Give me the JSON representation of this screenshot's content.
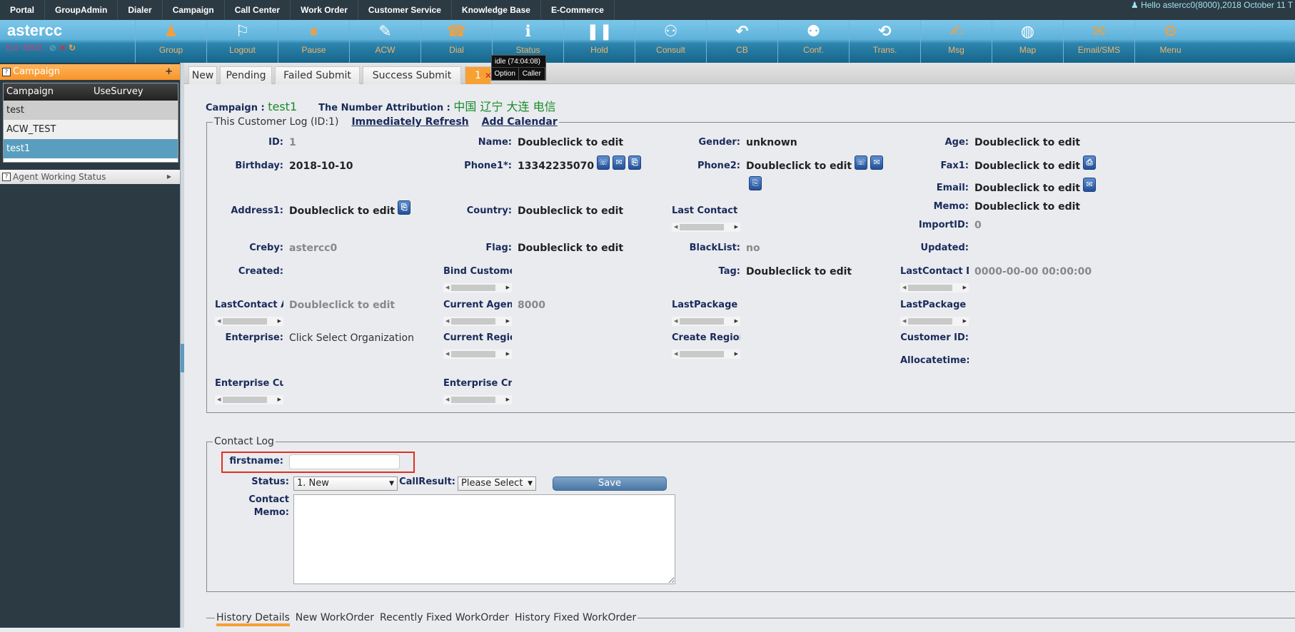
{
  "topnav": {
    "items": [
      "Portal",
      "GroupAdmin",
      "Dialer",
      "Campaign",
      "Call Center",
      "Work Order",
      "Customer Service",
      "Knowledge Base",
      "E-Commerce"
    ],
    "hello": "Hello astercc0(8000),2018 October 11 T"
  },
  "brand": {
    "name": "astercc",
    "ext": "Ext: 8000 :"
  },
  "toolbar": [
    {
      "label": "Group",
      "icon": "group-icon",
      "color": "orange"
    },
    {
      "label": "Logout",
      "icon": "logout-runner-icon",
      "color": "white"
    },
    {
      "label": "Pause",
      "icon": "pause-icon",
      "color": "orange"
    },
    {
      "label": "ACW",
      "icon": "edit-icon",
      "color": "white"
    },
    {
      "label": "Dial",
      "icon": "phone-icon",
      "color": "orange"
    },
    {
      "label": "Status",
      "icon": "info-icon",
      "color": "white"
    },
    {
      "label": "Hold",
      "icon": "hold-icon",
      "color": "white"
    },
    {
      "label": "Consult",
      "icon": "users-icon",
      "color": "white"
    },
    {
      "label": "CB",
      "icon": "reply-icon",
      "color": "white"
    },
    {
      "label": "Conf.",
      "icon": "conference-icon",
      "color": "white"
    },
    {
      "label": "Trans.",
      "icon": "transfer-icon",
      "color": "white"
    },
    {
      "label": "Msg",
      "icon": "message-icon",
      "color": "orange"
    },
    {
      "label": "Map",
      "icon": "globe-icon",
      "color": "white"
    },
    {
      "label": "Email/SMS",
      "icon": "mail-icon",
      "color": "orange"
    },
    {
      "label": "Menu",
      "icon": "gear-icon",
      "color": "orange"
    }
  ],
  "sidebar": {
    "title": "Campaign",
    "add": "+",
    "columns": [
      "Campaign",
      "UseSurvey"
    ],
    "rows": [
      "test",
      "ACW_TEST",
      "test1"
    ],
    "selected": "test1",
    "agent_status": "Agent Working Status"
  },
  "tabs": [
    "New",
    "Pending",
    "Failed Submit",
    "Success Submit",
    "1"
  ],
  "tooltip": {
    "status": "idle (74:04:08)",
    "option": "Option",
    "caller": "Caller"
  },
  "campaign": {
    "label": "Campaign :",
    "value": "test1",
    "attr_label": "The Number Attribution :",
    "attr_value": "中国 辽宁 大连 电信"
  },
  "customer_log": {
    "legend": "This Customer Log (ID:1)",
    "refresh": "Immediately Refresh",
    "calendar": "Add Calendar",
    "fields": [
      {
        "label": "ID:",
        "value": "1",
        "style": "muted"
      },
      {
        "label": "Birthday:",
        "value": "2018-10-10"
      },
      {
        "label": "Address1:",
        "value": "Doubleclick to edit",
        "icons": [
          "copy-icon"
        ]
      },
      {
        "label": "Creby:",
        "value": "astercc0",
        "style": "muted"
      },
      {
        "label": "Created:",
        "value": ""
      },
      {
        "label": "LastContact Agent",
        "value": "Doubleclick to edit",
        "style": "muted",
        "truncated": true
      },
      {
        "label": "Enterprise:",
        "value": "Click Select Organization",
        "style": "normal"
      },
      {
        "label": "Enterprise Customer",
        "value": "",
        "truncated": true
      },
      {
        "label": "Name:",
        "value": "Doubleclick to edit"
      },
      {
        "label": "Phone1*:",
        "value": "13342235070",
        "icons": [
          "call-icon",
          "sms-icon",
          "copy-icon"
        ]
      },
      {
        "label": "Country:",
        "value": "Doubleclick to edit"
      },
      {
        "label": "Flag:",
        "value": "Doubleclick to edit"
      },
      {
        "label": "Bind Customer",
        "value": "",
        "truncated": true
      },
      {
        "label": "Current Agent",
        "value": "8000",
        "style": "muted",
        "truncated": true
      },
      {
        "label": "Current Region",
        "value": "",
        "truncated": true
      },
      {
        "label": "Enterprise Create",
        "value": "",
        "truncated": true
      },
      {
        "label": "Gender:",
        "value": "unknown"
      },
      {
        "label": "Phone2:",
        "value": "Doubleclick to edit",
        "icons": [
          "call-icon",
          "sms-icon"
        ]
      },
      {
        "label": "Last Contact Info",
        "value": "",
        "truncated": true
      },
      {
        "label": "BlackList:",
        "value": "no",
        "style": "muted"
      },
      {
        "label": "Tag:",
        "value": "Doubleclick to edit"
      },
      {
        "label": "LastPackage Info",
        "value": "",
        "truncated": true
      },
      {
        "label": "Create Region",
        "value": "",
        "truncated": true
      },
      {
        "label": "Age:",
        "value": "Doubleclick to edit"
      },
      {
        "label": "Fax1:",
        "value": "Doubleclick to edit",
        "icons": [
          "fax-icon"
        ]
      },
      {
        "label": "Email:",
        "value": "Doubleclick to edit",
        "icons": [
          "email-icon"
        ]
      },
      {
        "label": "Memo:",
        "value": "Doubleclick to edit"
      },
      {
        "label": "ImportID:",
        "value": "0",
        "style": "muted"
      },
      {
        "label": "Updated:",
        "value": ""
      },
      {
        "label": "LastContact Date",
        "value": "0000-00-00 00:00:00",
        "style": "muted",
        "truncated": true
      },
      {
        "label": "LastPackage Content",
        "value": "",
        "truncated": true
      },
      {
        "label": "Customer ID:",
        "value": ""
      },
      {
        "label": "Allocatetime:",
        "value": ""
      }
    ]
  },
  "contact_log": {
    "legend": "Contact Log",
    "firstname_label": "firstname:",
    "firstname_value": "",
    "status_label": "Status:",
    "status_value": "1. New",
    "callresult_label": "CallResult:",
    "callresult_value": "Please Select",
    "save": "Save",
    "memo_label_1": "Contact",
    "memo_label_2": "Memo:",
    "memo_value": ""
  },
  "history": {
    "tabs": [
      "History Details",
      "New WorkOrder",
      "Recently Fixed WorkOrder",
      "History Fixed WorkOrder"
    ],
    "active": "History Details"
  },
  "colors": {
    "accent": "#f7a033",
    "topnav": "#2c3a43",
    "label": "#1a2a5a",
    "highlight": "#e03020",
    "selected_row": "#5a9ebf"
  }
}
